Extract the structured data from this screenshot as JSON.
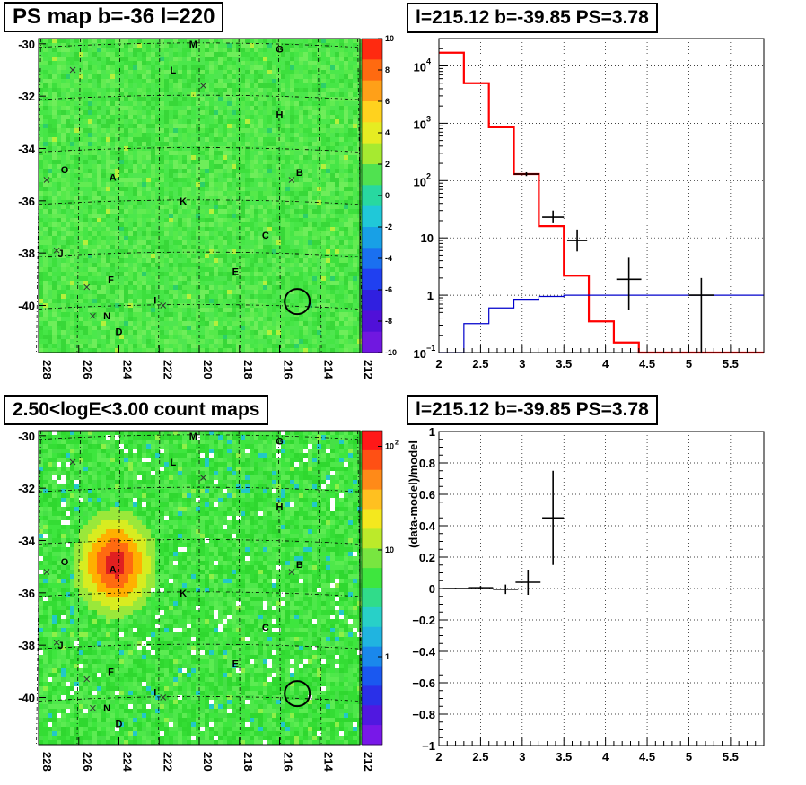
{
  "colors": {
    "data_marker": "#000000",
    "model_line": "#ff0000",
    "bkg_line": "#0000cc",
    "grid": "#000000",
    "map_base": "#3ee23e"
  },
  "top_left": {
    "title": "PS map b=-36 l=220",
    "x_ticks": [
      "228",
      "226",
      "224",
      "222",
      "220",
      "218",
      "216",
      "214",
      "212"
    ],
    "y_ticks": [
      "-30",
      "-32",
      "-34",
      "-36",
      "-38",
      "-40"
    ],
    "colorbar_ticks": [
      "10",
      "8",
      "6",
      "4",
      "2",
      "0",
      "-2",
      "-4",
      "-6",
      "-8",
      "-10"
    ],
    "labels": [
      "M",
      "G",
      "L",
      "H",
      "O",
      "A",
      "B",
      "K",
      "C",
      "J",
      "E",
      "F",
      "I",
      "N",
      "D"
    ]
  },
  "bottom_left": {
    "title": "2.50<logE<3.00 count maps",
    "x_ticks": [
      "228",
      "226",
      "224",
      "222",
      "220",
      "218",
      "216",
      "214",
      "212"
    ],
    "y_ticks": [
      "-30",
      "-32",
      "-34",
      "-36",
      "-38",
      "-40"
    ],
    "colorbar_ticks": [
      "10",
      "10",
      "1"
    ],
    "colorbar_sup": "2",
    "labels": [
      "M",
      "G",
      "L",
      "H",
      "O",
      "A",
      "B",
      "K",
      "C",
      "J",
      "E",
      "F",
      "I",
      "N",
      "D"
    ]
  },
  "top_right": {
    "title": "l=215.12 b=-39.85 PS=3.78"
  },
  "bottom_right": {
    "title": "l=215.12 b=-39.85 PS=3.78"
  },
  "chart_data": [
    {
      "type": "heatmap",
      "title": "PS map b=-36 l=220",
      "xlabel": "",
      "ylabel": "",
      "xlim": [
        228,
        212
      ],
      "ylim": [
        -41.8,
        -29.8
      ],
      "zlim": [
        -10,
        10
      ],
      "sources": [
        {
          "name": "M",
          "l": 220.3,
          "b": -30.0
        },
        {
          "name": "G",
          "l": 216.0,
          "b": -30.2
        },
        {
          "name": "L",
          "l": 221.3,
          "b": -31.0
        },
        {
          "name": "H",
          "l": 216.0,
          "b": -32.7
        },
        {
          "name": "O",
          "l": 226.7,
          "b": -34.8
        },
        {
          "name": "A",
          "l": 224.3,
          "b": -35.1
        },
        {
          "name": "B",
          "l": 215.0,
          "b": -34.9
        },
        {
          "name": "K",
          "l": 220.8,
          "b": -36.0
        },
        {
          "name": "C",
          "l": 216.7,
          "b": -37.3
        },
        {
          "name": "J",
          "l": 226.9,
          "b": -38.0
        },
        {
          "name": "E",
          "l": 218.2,
          "b": -38.7
        },
        {
          "name": "F",
          "l": 224.4,
          "b": -39.0
        },
        {
          "name": "I",
          "l": 222.2,
          "b": -39.8
        },
        {
          "name": "N",
          "l": 224.6,
          "b": -40.4
        },
        {
          "name": "D",
          "l": 224.0,
          "b": -41.0
        }
      ],
      "marker_circle": {
        "l": 215.12,
        "b": -39.85
      }
    },
    {
      "type": "heatmap",
      "title": "2.50<logE<3.00 count maps",
      "xlim": [
        228,
        212
      ],
      "ylim": [
        -41.8,
        -29.8
      ],
      "zscale": "log",
      "bright_source": {
        "name": "A",
        "l": 224.3,
        "b": -34.8
      },
      "marker_circle": {
        "l": 215.12,
        "b": -39.85
      }
    },
    {
      "type": "line",
      "title": "l=215.12 b=-39.85 PS=3.78",
      "yscale": "log",
      "xlim": [
        2,
        5.9
      ],
      "ylim": [
        0.1,
        30000
      ],
      "x_ticks": [
        "2",
        "2.5",
        "3",
        "3.5",
        "4",
        "4.5",
        "5",
        "5.5"
      ],
      "y_ticks": [
        "10^-1",
        "1",
        "10",
        "10^2",
        "10^3",
        "10^4"
      ],
      "grid": true,
      "series": [
        {
          "style": "step",
          "edges": [
            2.0,
            2.3,
            2.6,
            2.9,
            3.2,
            3.5,
            3.8,
            4.1,
            4.4,
            4.7,
            5.0,
            5.3,
            5.6,
            5.9
          ],
          "values": [
            17000,
            5000,
            850,
            130,
            16,
            2.2,
            0.35,
            0.15,
            0.1,
            0.1,
            0.1,
            0.1,
            0.1
          ]
        },
        {
          "style": "step",
          "edges": [
            2.0,
            2.3,
            2.6,
            2.9,
            3.2,
            3.5,
            3.8,
            4.1,
            4.4,
            4.7,
            5.0,
            5.3,
            5.6,
            5.9
          ],
          "values": [
            0.1,
            0.32,
            0.6,
            0.85,
            0.95,
            1.0,
            1.0,
            1.0,
            1.0,
            1.0,
            1.0,
            1.0,
            1.0
          ]
        },
        {
          "style": "errorbar",
          "points": [
            {
              "x": 3.05,
              "y": 130,
              "xerr": 0.15,
              "ylo": 120,
              "yhi": 140
            },
            {
              "x": 3.37,
              "y": 23,
              "xerr": 0.13,
              "ylo": 18,
              "yhi": 30
            },
            {
              "x": 3.66,
              "y": 9,
              "xerr": 0.12,
              "ylo": 5.8,
              "yhi": 14
            },
            {
              "x": 4.28,
              "y": 1.9,
              "xerr": 0.15,
              "ylo": 0.55,
              "yhi": 4.5
            },
            {
              "x": 5.15,
              "y": 1.0,
              "xerr": 0.15,
              "ylo": 0.1,
              "yhi": 2.0
            }
          ]
        }
      ]
    },
    {
      "type": "scatter",
      "title": "l=215.12 b=-39.85 PS=3.78",
      "xlabel": "",
      "ylabel": "(data-model)/model",
      "xlim": [
        2,
        5.9
      ],
      "ylim": [
        -1,
        1
      ],
      "x_ticks": [
        "2",
        "2.5",
        "3",
        "3.5",
        "4",
        "4.5",
        "5",
        "5.5"
      ],
      "y_ticks": [
        "1",
        "0.8",
        "0.6",
        "0.4",
        "0.2",
        "0",
        "−0.2",
        "−0.4",
        "−0.6",
        "−0.8",
        "−1"
      ],
      "grid": true,
      "points": [
        {
          "x": 2.2,
          "y": 0.0,
          "xerr": 0.15,
          "yerr": 0.005
        },
        {
          "x": 2.5,
          "y": 0.005,
          "xerr": 0.15,
          "yerr": 0.01
        },
        {
          "x": 2.8,
          "y": -0.005,
          "xerr": 0.15,
          "yerr": 0.03
        },
        {
          "x": 3.07,
          "y": 0.04,
          "xerr": 0.15,
          "yerr": 0.08
        },
        {
          "x": 3.37,
          "y": 0.45,
          "xerr": 0.13,
          "yerr": 0.3
        }
      ]
    }
  ]
}
